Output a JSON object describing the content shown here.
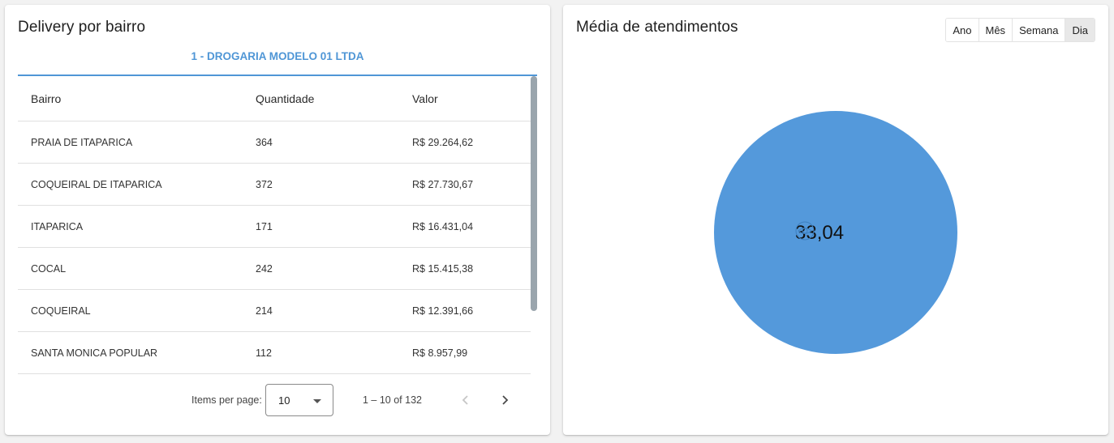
{
  "delivery": {
    "title": "Delivery por bairro",
    "store_tab": "1 - DROGARIA MODELO 01 LTDA",
    "columns": [
      "Bairro",
      "Quantidade",
      "Valor"
    ],
    "rows": [
      {
        "bairro": "PRAIA DE ITAPARICA",
        "quantidade": "364",
        "valor": "R$ 29.264,62"
      },
      {
        "bairro": "COQUEIRAL DE ITAPARICA",
        "quantidade": "372",
        "valor": "R$ 27.730,67"
      },
      {
        "bairro": "ITAPARICA",
        "quantidade": "171",
        "valor": "R$ 16.431,04"
      },
      {
        "bairro": "COCAL",
        "quantidade": "242",
        "valor": "R$ 15.415,38"
      },
      {
        "bairro": "COQUEIRAL",
        "quantidade": "214",
        "valor": "R$ 12.391,66"
      },
      {
        "bairro": "SANTA MONICA POPULAR",
        "quantidade": "112",
        "valor": "R$ 8.957,99"
      }
    ],
    "paginator": {
      "items_per_page_label": "Items per page:",
      "page_size": "10",
      "range_label": "1 – 10 of 132"
    }
  },
  "media": {
    "title": "Média de atendimentos",
    "periods": [
      "Ano",
      "Mês",
      "Semana",
      "Dia"
    ],
    "active_period": "Dia",
    "value_label": "33,04"
  },
  "colors": {
    "accent": "#4f96d6",
    "pie": "#5499db"
  },
  "icons": {
    "prev": "chevron-left-icon",
    "next": "chevron-right-icon",
    "dropdown": "triangle-down-icon",
    "pie_label": "eye-icon"
  },
  "chart_data": {
    "type": "pie",
    "categories": [
      ""
    ],
    "values": [
      33.04
    ],
    "labels": [
      "33,04"
    ],
    "legend": "none"
  }
}
